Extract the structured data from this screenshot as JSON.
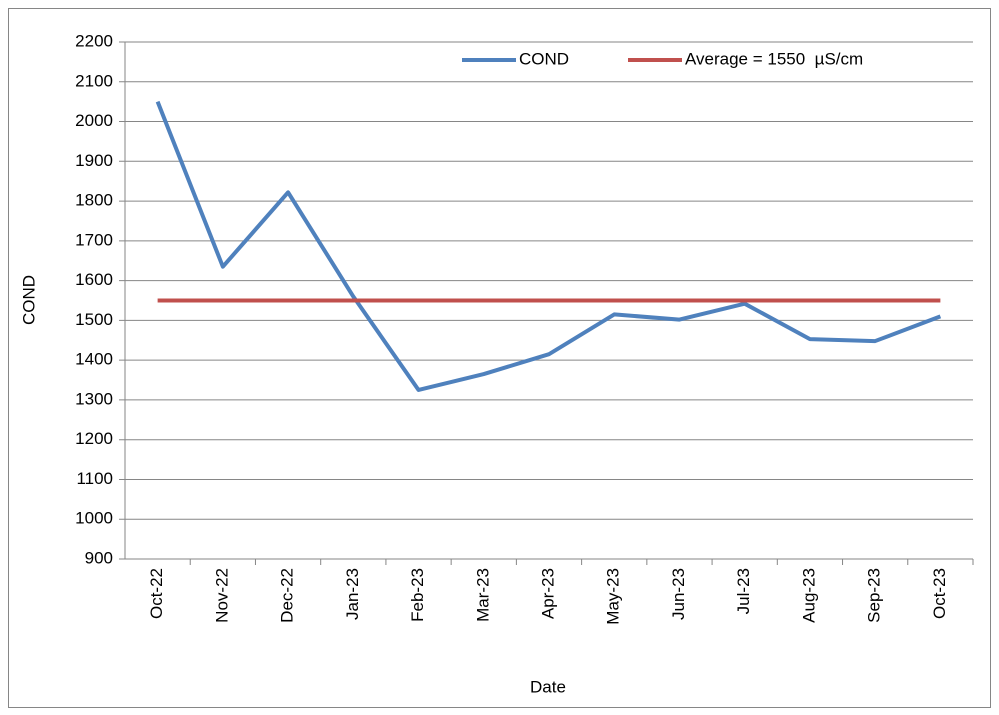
{
  "chart_data": {
    "type": "line",
    "x_label": "Date",
    "y_label": "COND",
    "categories": [
      "Oct-22",
      "Nov-22",
      "Dec-22",
      "Jan-23",
      "Feb-23",
      "Mar-23",
      "Apr-23",
      "May-23",
      "Jun-23",
      "Jul-23",
      "Aug-23",
      "Sep-23",
      "Oct-23"
    ],
    "series": [
      {
        "name": "COND",
        "color": "#4f81bd",
        "values": [
          2050,
          1635,
          1822,
          1560,
          1325,
          1365,
          1415,
          1515,
          1502,
          1542,
          1453,
          1448,
          1510
        ]
      },
      {
        "name": "Average = 1550  µS/cm",
        "color": "#c0504d",
        "values": [
          1550,
          1550,
          1550,
          1550,
          1550,
          1550,
          1550,
          1550,
          1550,
          1550,
          1550,
          1550,
          1550
        ]
      }
    ],
    "ylim": [
      900,
      2200
    ],
    "yticks": [
      900,
      1000,
      1100,
      1200,
      1300,
      1400,
      1500,
      1600,
      1700,
      1800,
      1900,
      2000,
      2100,
      2200
    ],
    "grid": true,
    "legend": "top"
  }
}
